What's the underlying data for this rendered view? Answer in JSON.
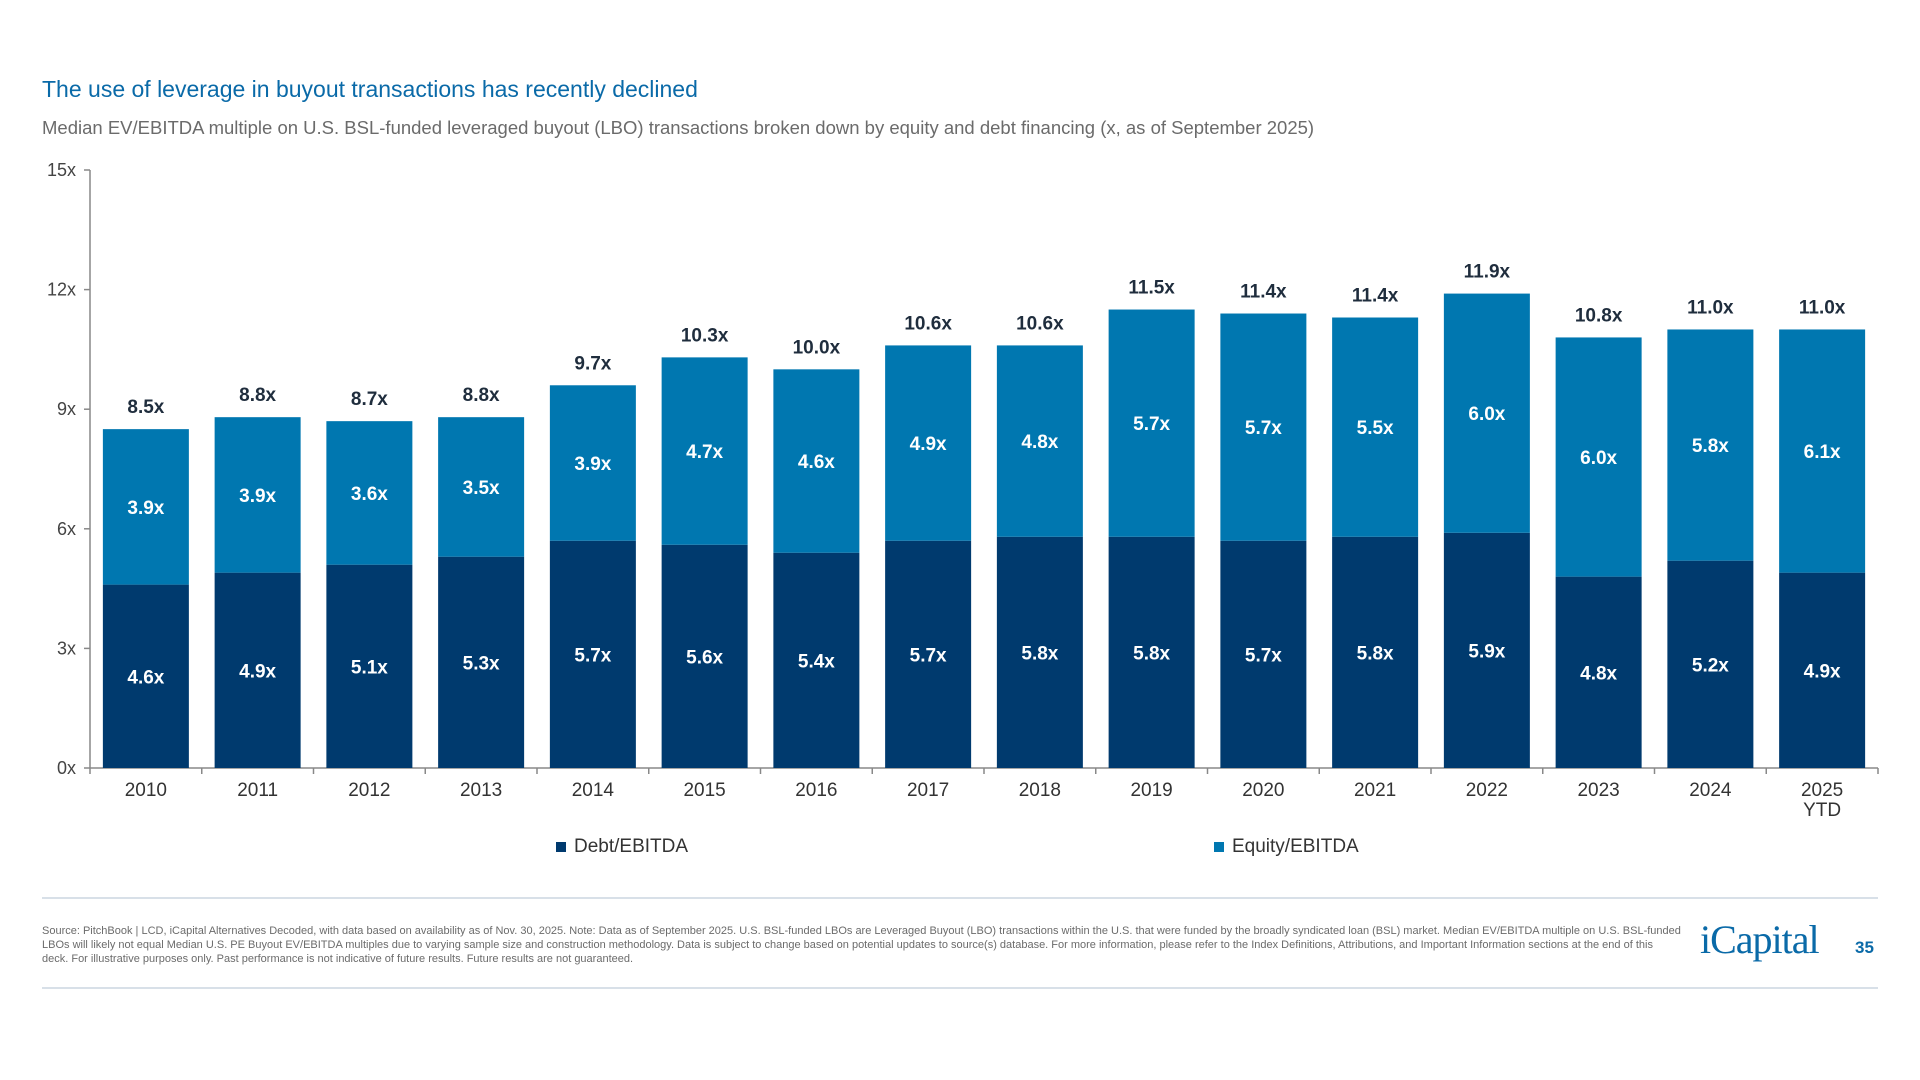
{
  "title": "The use of leverage in buyout transactions has recently declined",
  "subtitle": "Median EV/EBITDA multiple on U.S. BSL-funded leveraged buyout (LBO) transactions broken down by equity and debt financing (x, as of September 2025)",
  "chart_data": {
    "type": "bar",
    "stacked": true,
    "categories": [
      "2010",
      "2011",
      "2012",
      "2013",
      "2014",
      "2015",
      "2016",
      "2017",
      "2018",
      "2019",
      "2020",
      "2021",
      "2022",
      "2023",
      "2024",
      "2025 YTD"
    ],
    "series": [
      {
        "name": "Debt/EBITDA",
        "color": "#003a6e",
        "values": [
          4.6,
          4.9,
          5.1,
          5.3,
          5.7,
          5.6,
          5.4,
          5.7,
          5.8,
          5.8,
          5.7,
          5.8,
          5.9,
          4.8,
          5.2,
          4.9
        ]
      },
      {
        "name": "Equity/EBITDA",
        "color": "#0077b0",
        "values": [
          3.9,
          3.9,
          3.6,
          3.5,
          3.9,
          4.7,
          4.6,
          4.9,
          4.8,
          5.7,
          5.7,
          5.5,
          6.0,
          6.0,
          5.8,
          6.1
        ]
      }
    ],
    "totals": [
      8.5,
      8.8,
      8.7,
      8.8,
      9.7,
      10.3,
      10.0,
      10.6,
      10.6,
      11.5,
      11.4,
      11.4,
      11.9,
      10.8,
      11.0,
      11.0
    ],
    "yticks": [
      0,
      3,
      6,
      9,
      12,
      15
    ],
    "ylim": [
      0,
      15
    ],
    "tick_suffix": "x",
    "grid": false,
    "legend_placement": "bottom"
  },
  "legend": {
    "debt": "Debt/EBITDA",
    "equity": "Equity/EBITDA"
  },
  "footer": "Source: PitchBook | LCD, iCapital Alternatives Decoded, with data based on availability as of Nov. 30, 2025. Note: Data as of September 2025. U.S. BSL-funded LBOs are Leveraged Buyout (LBO) transactions within the U.S. that were funded by the broadly syndicated loan (BSL) market. Median EV/EBITDA multiple on U.S. BSL-funded LBOs will likely not equal Median U.S. PE Buyout EV/EBITDA multiples due to varying sample size and construction methodology. Data is subject to change based on potential updates to source(s) database. For more information, please refer to the Index Definitions, Attributions, and Important Information sections at the end of this deck. For illustrative purposes only. Past performance is not indicative of future results. Future results are not guaranteed.",
  "logo": "iCapital",
  "page_number": "35"
}
